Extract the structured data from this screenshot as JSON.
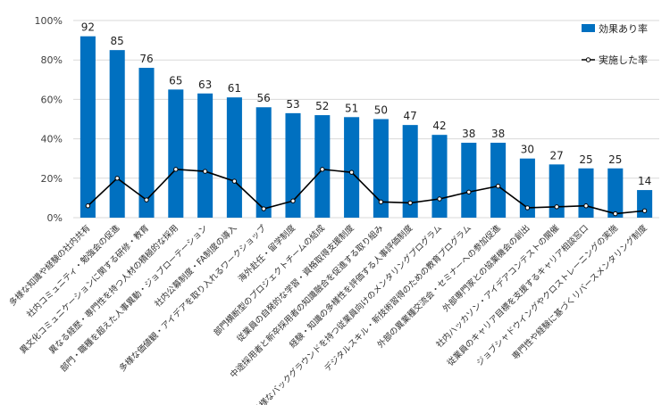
{
  "chart_data": {
    "type": "bar",
    "title": "",
    "xlabel": "",
    "ylabel": "",
    "ylim": [
      0,
      100
    ],
    "yticks": [
      "0%",
      "20%",
      "40%",
      "60%",
      "80%",
      "100%"
    ],
    "legend_position": "top-right",
    "grid": true,
    "categories": [
      "多様な知識や経験の社内共有",
      "社内コミュニティ・勉強会の促進",
      "異文化コミュニケーションに関する研修・教育",
      "異なる経歴・専門性を持つ人材の積極的な採用",
      "部門・職種を超えた人事異動・ジョブローテーション",
      "社内公募制度・FA制度の導入",
      "多様な価値観・アイデアを取り入れるワークショップ",
      "海外赴任・留学制度",
      "部門横断型のプロジェクトチームの結成",
      "従業員の自発的な学習・資格取得支援制度",
      "中途採用者と新卒採用者の知識融合を促進する取り組み",
      "経験・知識の多様性を評価する人事評価制度",
      "多様なバックグラウンドを持つ従業員向けのメンタリングプログラム",
      "デジタルスキル・新技術習得のための教育プログラム",
      "外部の異業種交流会・セミナーへの参加促進",
      "外部専門家との協業機会の創出",
      "社内ハッカソン・アイデアコンテストの開催",
      "従業員のキャリア目標を支援するキャリア相談窓口",
      "ジョブシャドウイングやクロストレーニングの実施",
      "専門性や経験に基づくリバースメンタリング制度"
    ],
    "series": [
      {
        "name": "効果あり率",
        "kind": "bar",
        "color": "#0070C0",
        "values": [
          92,
          85,
          76,
          65,
          63,
          61,
          56,
          53,
          52,
          51,
          50,
          47,
          42,
          38,
          38,
          30,
          27,
          25,
          25,
          14
        ]
      },
      {
        "name": "実施した率",
        "kind": "line",
        "color": "#000000",
        "values": [
          6,
          20,
          9,
          24.5,
          23.5,
          18.5,
          4.5,
          8.5,
          24.5,
          23,
          8,
          7.5,
          9.5,
          13,
          16,
          5,
          5.5,
          6,
          2,
          3.5
        ]
      }
    ]
  }
}
